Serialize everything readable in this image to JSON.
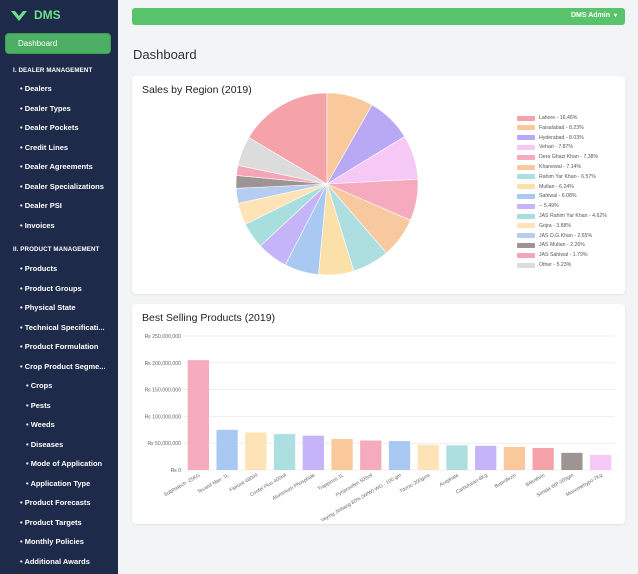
{
  "brand": {
    "name": "DMS"
  },
  "sidebar": {
    "dashboard_label": "Dashboard",
    "sections": [
      {
        "title": "I. DEALER MANAGEMENT",
        "items": [
          "Dealers",
          "Dealer Types",
          "Dealer Pockets",
          "Credit Lines",
          "Dealer Agreements",
          "Dealer Specializations",
          "Dealer PSI",
          "Invoices"
        ]
      },
      {
        "title": "II. PRODUCT MANAGEMENT",
        "items": [
          "Products",
          "Product Groups",
          "Physical State",
          "Technical Specificati...",
          "Product Formulation",
          "Crop Product Segme..."
        ]
      }
    ],
    "sub_items": [
      "Crops",
      "Pests",
      "Weeds",
      "Diseases",
      "Mode of Application",
      "Application Type"
    ],
    "more_items": [
      "Product Forecasts",
      "Product Targets",
      "Monthly Policies",
      "Additional Awards"
    ],
    "bullet": "•"
  },
  "header": {
    "user": "DMS Admin",
    "caret": "▾"
  },
  "page": {
    "title": "Dashboard"
  },
  "colors": {
    "sidebar_bg": "#1e2a4a",
    "accent": "#58c36b"
  },
  "chart_data": [
    {
      "type": "pie",
      "title": "Sales by Region (2019)",
      "labels": [
        "Lahore - 16.46%",
        "Faisalabad - 8.23%",
        "Hyderabad - 8.03%",
        "Vehari - 7.87%",
        "Dera Ghazi Khan - 7.38%",
        "Khanewal - 7.14%",
        "Rahim Yar Khan - 6.57%",
        "Multan - 6.24%",
        "Sahiwal - 6.08%",
        "-- 5.49%",
        "JAS Rahim Yar Khan - 4.62%",
        "Gojra - 3.88%",
        "JAS D.G.Khan - 2.65%",
        "JAS Multan - 2.26%",
        "JAS Sahiwal - 1.79%",
        "Other - 5.23%"
      ],
      "values": [
        16.46,
        8.23,
        8.03,
        7.87,
        7.38,
        7.14,
        6.57,
        6.24,
        6.08,
        5.49,
        4.62,
        3.88,
        2.65,
        2.26,
        1.79,
        5.23
      ],
      "colors": [
        "#f5a3a8",
        "#f9c89b",
        "#b9a8f3",
        "#f6c8f6",
        "#f6aabe",
        "#f8c99e",
        "#aedfe0",
        "#fbe0aa",
        "#a9c9f2",
        "#c5b4f7",
        "#a8dedd",
        "#fde3b6",
        "#b6cdf1",
        "#9f9494",
        "#f4a6b6",
        "#dcdcdc"
      ],
      "legend": "right"
    },
    {
      "type": "bar",
      "title": "Best Selling Products (2019)",
      "categories": [
        "Sulphatech -25KG",
        "Tecanil Max- 1L",
        "Fipronil 480ml",
        "Confel Plus-400ml",
        "Aluminium Phosphide",
        "Trappinos 1L",
        "Pyriproxifen 500ml",
        "Veying Jinbang 80% (W/W) WG - 100 gm",
        "Titonic-200gms",
        "Acephate",
        "Carbofuran-8Kg",
        "Buprofezin",
        "Bifenthrin",
        "Simida WP-200gm",
        "Monomehypo-7Kg"
      ],
      "values": [
        205000000,
        75000000,
        70000000,
        67000000,
        64000000,
        58000000,
        55000000,
        54000000,
        47000000,
        46000000,
        45000000,
        43000000,
        41000000,
        32000000,
        28000000
      ],
      "colors": [
        "#f6aabe",
        "#a9c9f2",
        "#fde3b6",
        "#aedfe0",
        "#c5b4f7",
        "#f9c89b",
        "#f6aabe",
        "#a9c9f2",
        "#fde3b6",
        "#aedfe0",
        "#c5b4f7",
        "#f9c89b",
        "#f5a3a8",
        "#9f9494",
        "#f6c8f6"
      ],
      "ylim": [
        0,
        250000000
      ],
      "yticks": [
        "₨ 0",
        "₨ 50,000,000",
        "₨ 100,000,000",
        "₨ 150,000,000",
        "₨ 200,000,000",
        "₨ 250,000,000"
      ],
      "grid": true
    }
  ]
}
